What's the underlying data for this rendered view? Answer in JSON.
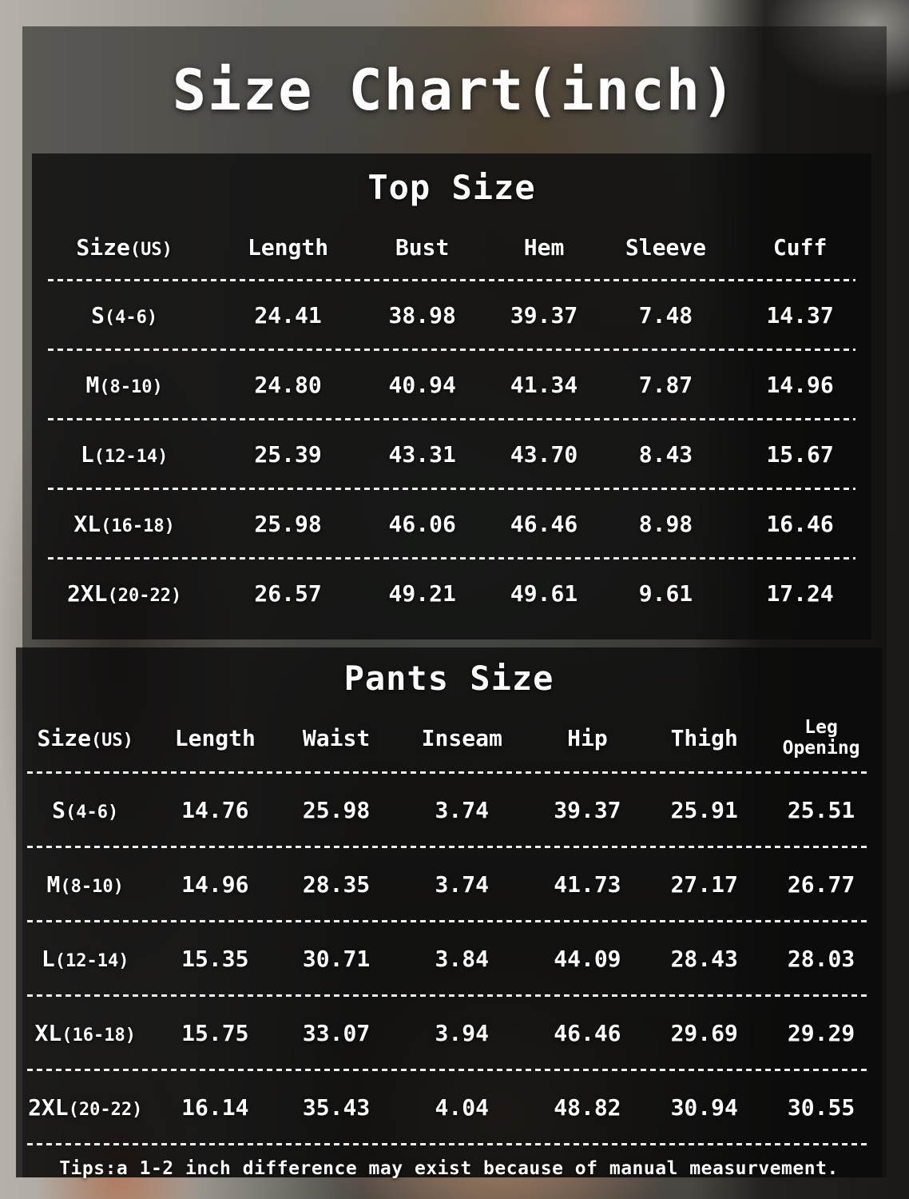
{
  "title": "Size Chart(inch)",
  "tips": "Tips:a 1-2 inch difference may exist because of manual measurvement.",
  "colors": {
    "text": "#ffffff",
    "overlay": "rgba(14,13,12,0.53)",
    "panel": "rgba(10,10,10,0.78)",
    "dash_line": "#efefef"
  },
  "chart_data": [
    {
      "type": "table",
      "title": "Top Size",
      "columns": [
        {
          "text": "Size",
          "paren": "(US)"
        },
        {
          "text": "Length"
        },
        {
          "text": "Bust"
        },
        {
          "text": "Hem"
        },
        {
          "text": "Sleeve"
        },
        {
          "text": "Cuff"
        }
      ],
      "rows": [
        {
          "size": "S",
          "paren": "(4-6)",
          "values": [
            "24.41",
            "38.98",
            "39.37",
            "7.48",
            "14.37"
          ]
        },
        {
          "size": "M",
          "paren": "(8-10)",
          "values": [
            "24.80",
            "40.94",
            "41.34",
            "7.87",
            "14.96"
          ]
        },
        {
          "size": "L",
          "paren": "(12-14)",
          "values": [
            "25.39",
            "43.31",
            "43.70",
            "8.43",
            "15.67"
          ]
        },
        {
          "size": "XL",
          "paren": "(16-18)",
          "values": [
            "25.98",
            "46.06",
            "46.46",
            "8.98",
            "16.46"
          ]
        },
        {
          "size": "2XL",
          "paren": "(20-22)",
          "values": [
            "26.57",
            "49.21",
            "49.61",
            "9.61",
            "17.24"
          ]
        }
      ]
    },
    {
      "type": "table",
      "title": "Pants Size",
      "columns": [
        {
          "text": "Size",
          "paren": "(US)"
        },
        {
          "text": "Length"
        },
        {
          "text": "Waist"
        },
        {
          "text": "Inseam"
        },
        {
          "text": "Hip"
        },
        {
          "text": "Thigh"
        },
        {
          "text": "Leg Opening",
          "small": true
        }
      ],
      "rows": [
        {
          "size": "S",
          "paren": "(4-6)",
          "values": [
            "14.76",
            "25.98",
            "3.74",
            "39.37",
            "25.91",
            "25.51"
          ]
        },
        {
          "size": "M",
          "paren": "(8-10)",
          "values": [
            "14.96",
            "28.35",
            "3.74",
            "41.73",
            "27.17",
            "26.77"
          ]
        },
        {
          "size": "L",
          "paren": "(12-14)",
          "values": [
            "15.35",
            "30.71",
            "3.84",
            "44.09",
            "28.43",
            "28.03"
          ]
        },
        {
          "size": "XL",
          "paren": "(16-18)",
          "values": [
            "15.75",
            "33.07",
            "3.94",
            "46.46",
            "29.69",
            "29.29"
          ]
        },
        {
          "size": "2XL",
          "paren": "(20-22)",
          "values": [
            "16.14",
            "35.43",
            "4.04",
            "48.82",
            "30.94",
            "30.55"
          ]
        }
      ]
    }
  ]
}
